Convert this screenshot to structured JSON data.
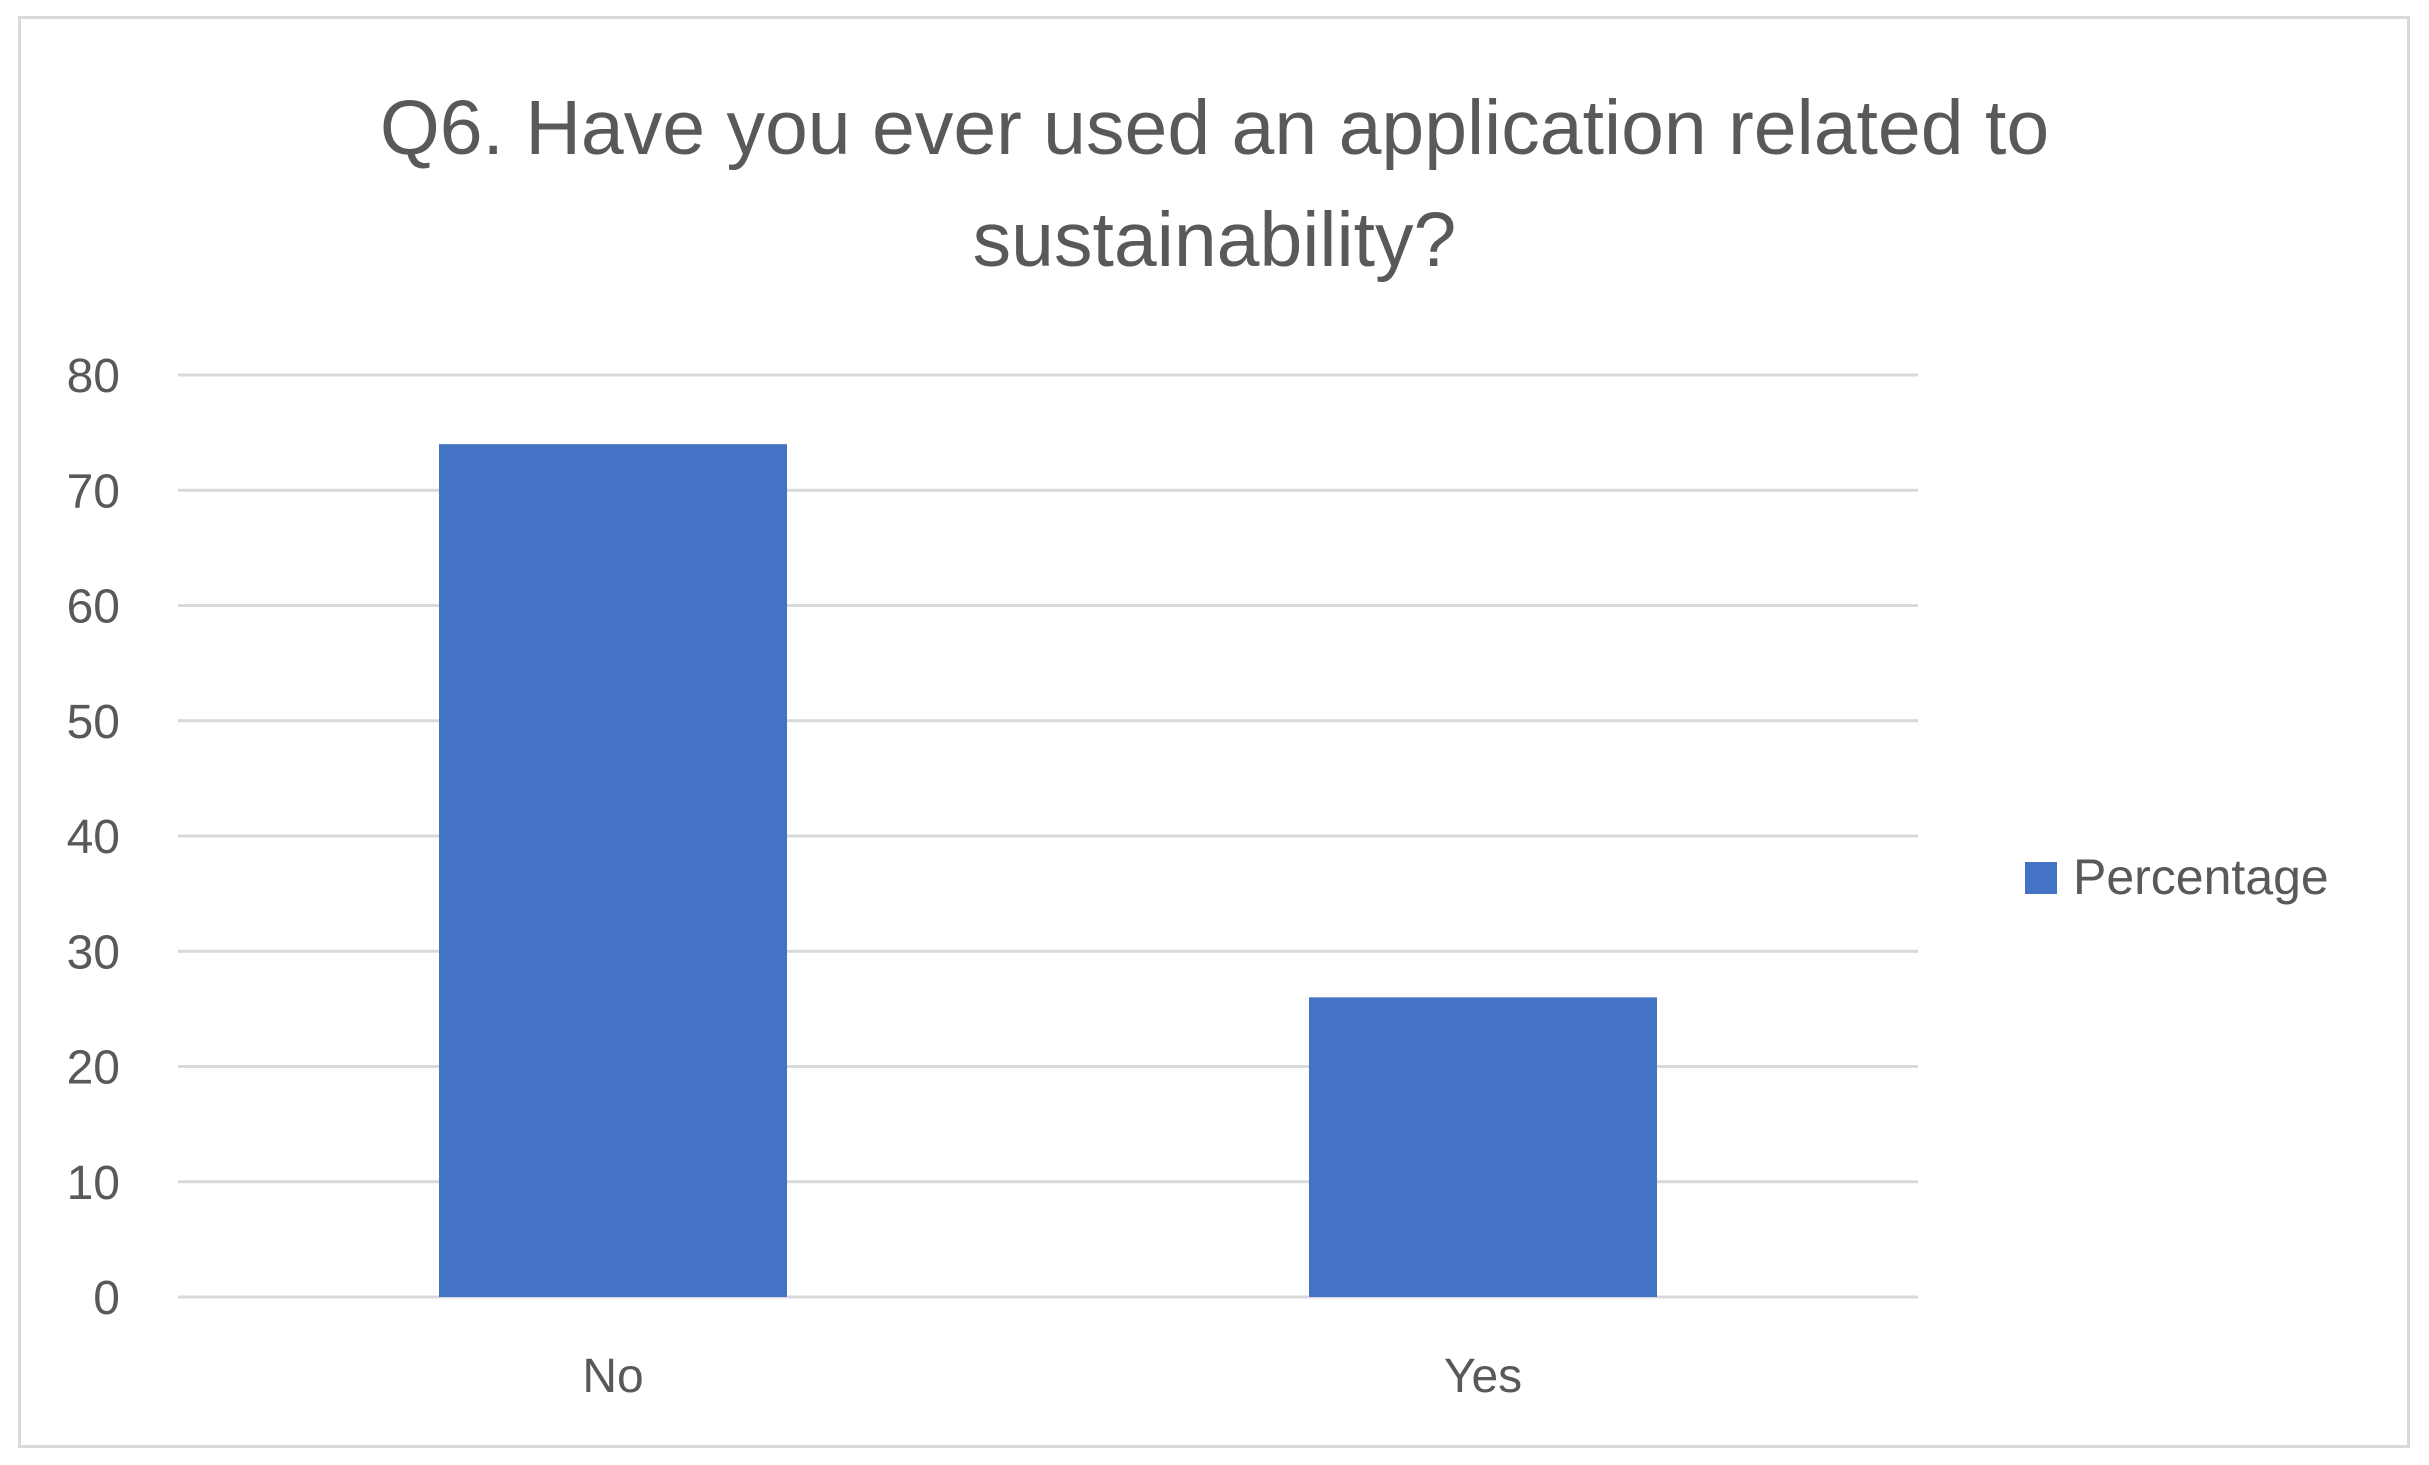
{
  "chart_data": {
    "type": "bar",
    "title": "Q6.  Have you ever used an application related to\nsustainability?",
    "categories": [
      "No",
      "Yes"
    ],
    "series": [
      {
        "name": "Percentage",
        "values": [
          74,
          26
        ],
        "color": "#4472c4"
      }
    ],
    "ylim": [
      0,
      80
    ],
    "yticks": [
      0,
      10,
      20,
      30,
      40,
      50,
      60,
      70,
      80
    ],
    "grid": true,
    "legend": "right",
    "colors": {
      "gridline": "#d9d9d9",
      "text": "#595959"
    }
  }
}
